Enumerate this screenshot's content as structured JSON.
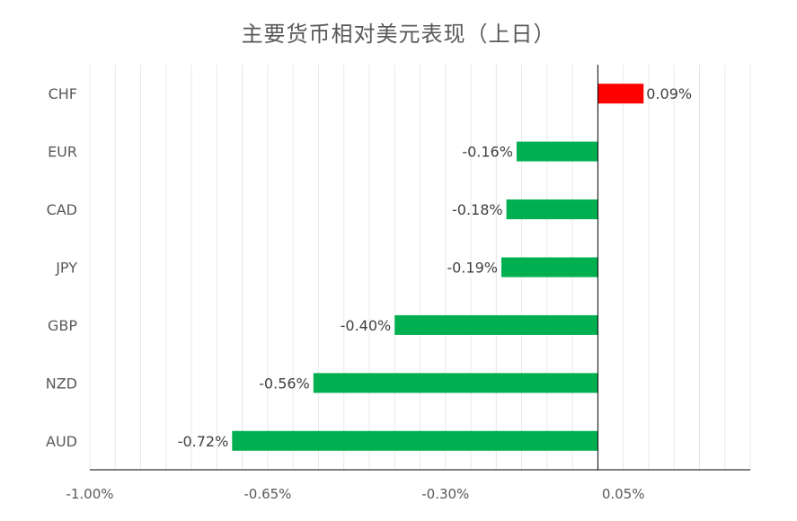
{
  "chart_data": {
    "type": "bar",
    "orientation": "horizontal",
    "title": "主要货币相对美元表现（上日）",
    "categories": [
      "CHF",
      "EUR",
      "CAD",
      "JPY",
      "GBP",
      "NZD",
      "AUD"
    ],
    "values": [
      0.09,
      -0.16,
      -0.18,
      -0.19,
      -0.4,
      -0.56,
      -0.72
    ],
    "data_labels": [
      "0.09%",
      "-0.16%",
      "-0.18%",
      "-0.19%",
      "-0.40%",
      "-0.56%",
      "-0.72%"
    ],
    "xlim": [
      -1.0,
      0.3
    ],
    "x_ticks": [
      -1.0,
      -0.65,
      -0.3,
      0.05
    ],
    "x_tick_labels": [
      "-1.00%",
      "-0.65%",
      "-0.30%",
      "0.05%"
    ],
    "grid": true,
    "legend": "none",
    "colors": {
      "positive": "#ff0000",
      "negative": "#00b050",
      "axis": "#000000",
      "grid": "#e8e8e8",
      "text": "#595959"
    }
  }
}
